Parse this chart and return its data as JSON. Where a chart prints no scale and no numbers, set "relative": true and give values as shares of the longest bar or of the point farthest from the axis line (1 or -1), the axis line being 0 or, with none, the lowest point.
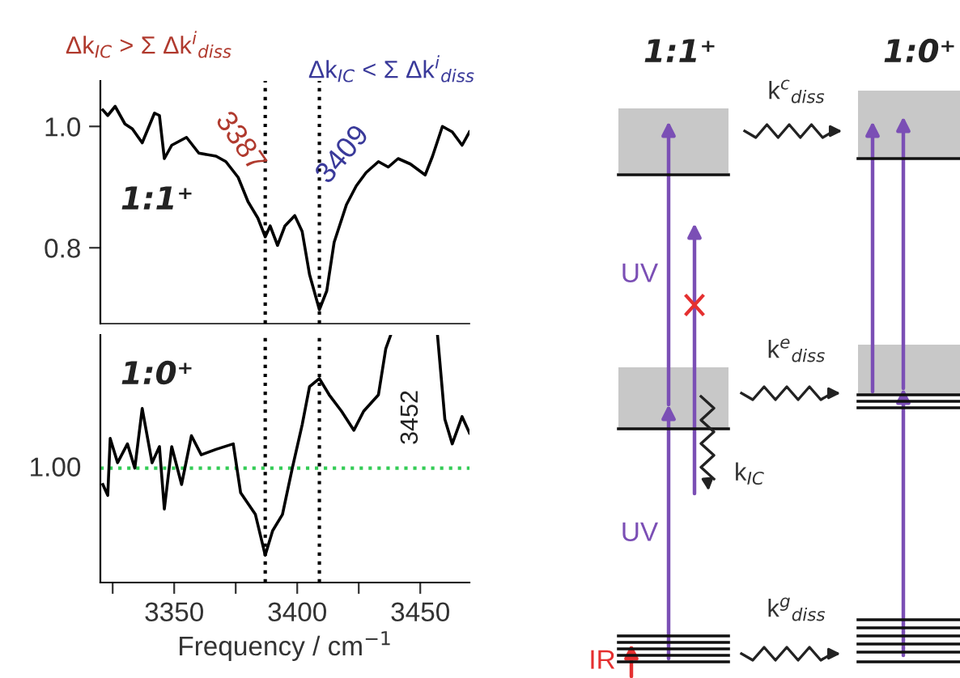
{
  "chart_data": [
    {
      "type": "line",
      "tick_labels": "y",
      "xlim": [
        3320,
        3470
      ],
      "ylim": [
        0.675,
        1.075
      ],
      "yticks": [
        0.8,
        {
          "value": 1.0,
          "label": "1.0"
        }
      ],
      "annotations": [
        "Δk$_{IC}$ > Σ Δk$^{i}$$_{diss}$",
        "Δk$_{IC}$ < Σ Δk$^{i}$$_{diss}$",
        "1:1⁺"
      ],
      "ref_lines": [
        {
          "axis": "x",
          "value": 3387,
          "label": "3387",
          "color": "#000000",
          "line_style": "dotted"
        },
        {
          "axis": "x",
          "value": 3409,
          "label": "3409",
          "color": "#000000",
          "line_style": "dotted"
        }
      ],
      "series": [
        {
          "color": "#000000",
          "x": [
            3321,
            3323,
            3326,
            3330,
            3333,
            3337,
            3342,
            3344,
            3346,
            3349,
            3355,
            3360,
            3367,
            3371,
            3376,
            3380,
            3384,
            3387,
            3389,
            3392,
            3395,
            3399,
            3402,
            3405,
            3409,
            3412,
            3415,
            3420,
            3424,
            3428,
            3433,
            3437,
            3441,
            3446,
            3452,
            3455,
            3459,
            3463,
            3467,
            3470
          ],
          "values": [
            1.027,
            1.018,
            1.033,
            1.004,
            0.996,
            0.973,
            1.022,
            1.018,
            0.947,
            0.969,
            0.982,
            0.956,
            0.951,
            0.942,
            0.916,
            0.876,
            0.849,
            0.818,
            0.836,
            0.804,
            0.836,
            0.853,
            0.827,
            0.756,
            0.698,
            0.729,
            0.809,
            0.871,
            0.902,
            0.924,
            0.942,
            0.933,
            0.947,
            0.938,
            0.92,
            0.951,
            1.0,
            0.991,
            0.969,
            0.991
          ]
        }
      ]
    },
    {
      "type": "line",
      "relative": true,
      "tick_labels": "x",
      "xlim": [
        3320,
        3470
      ],
      "xlabel": "Frequency / cm$^{−1}$",
      "xticks": [
        {
          "value": 3325,
          "label": null
        },
        3350,
        {
          "value": 3375,
          "label": null
        },
        3400,
        {
          "value": 3425,
          "label": null
        },
        3450
      ],
      "annotations": [
        "1:0⁺",
        "3452",
        "1.00"
      ],
      "ref_lines": [
        {
          "axis": "y",
          "value": 0.462,
          "color": "#33cc55",
          "line_style": "dotted"
        },
        {
          "axis": "x",
          "value": 3387,
          "color": "#000000",
          "line_style": "dotted"
        },
        {
          "axis": "x",
          "value": 3409,
          "color": "#000000",
          "line_style": "dotted"
        }
      ],
      "series": [
        {
          "color": "#000000",
          "x": [
            3321,
            3323,
            3324,
            3327,
            3331,
            3334,
            3337,
            3341,
            3344,
            3346,
            3349,
            3353,
            3357,
            3361,
            3367,
            3374,
            3377,
            3383,
            3387,
            3390,
            3394,
            3398,
            3402,
            3405,
            3409,
            3413,
            3418,
            3423,
            3427,
            3433,
            3436,
            3438,
            3448,
            3457,
            3460,
            3463,
            3467,
            3470
          ],
          "values": [
            0.396,
            0.352,
            0.582,
            0.484,
            0.56,
            0.462,
            0.703,
            0.484,
            0.549,
            0.297,
            0.549,
            0.396,
            0.593,
            0.516,
            0.538,
            0.56,
            0.363,
            0.275,
            0.11,
            0.209,
            0.275,
            0.462,
            0.637,
            0.791,
            0.824,
            0.758,
            0.692,
            0.615,
            0.692,
            0.758,
            0.945,
            1.0,
            null,
            1.0,
            0.659,
            0.56,
            0.67,
            0.604
          ]
        }
      ]
    },
    {
      "type": "other",
      "annotations": [
        "1:1⁺",
        "1:0⁺",
        "k$^{c}$$_{diss}$",
        "k$^{e}$$_{diss}$",
        "k$^{g}$$_{diss}$",
        "UV",
        "UV",
        "k$_{IC}$",
        "IR"
      ]
    }
  ]
}
